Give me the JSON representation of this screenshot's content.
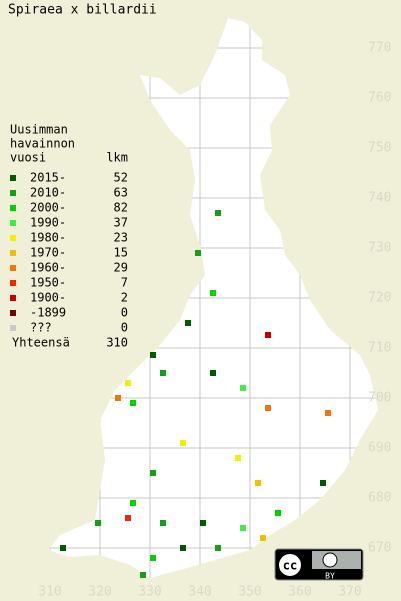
{
  "title": "Spiraea x billardii",
  "legend": {
    "heading": [
      "Uusimman",
      "havainnon",
      "vuosi"
    ],
    "count_heading": "lkm",
    "rows": [
      {
        "label": "2015-",
        "count": 52,
        "color": "#005a00"
      },
      {
        "label": "2010-",
        "count": 63,
        "color": "#14a014"
      },
      {
        "label": "2000-",
        "count": 82,
        "color": "#00d200"
      },
      {
        "label": "1990-",
        "count": 37,
        "color": "#3cf03c"
      },
      {
        "label": "1980-",
        "count": 23,
        "color": "#f0f000"
      },
      {
        "label": "1970-",
        "count": 15,
        "color": "#f0c000"
      },
      {
        "label": "1960-",
        "count": 29,
        "color": "#f07800"
      },
      {
        "label": "1950-",
        "count": 7,
        "color": "#f02800"
      },
      {
        "label": "1900-",
        "count": 2,
        "color": "#c80000"
      },
      {
        "label": "-1899",
        "count": 0,
        "color": "#780000"
      },
      {
        "label": "???",
        "count": 0,
        "color": "#c8c8c8"
      }
    ],
    "total_label": "Yhteensä",
    "total": 310
  },
  "axes": {
    "northing": [
      770,
      760,
      750,
      740,
      730,
      720,
      710,
      700,
      690,
      680,
      670
    ],
    "easting": [
      310,
      320,
      330,
      340,
      350,
      360,
      370
    ]
  },
  "license": {
    "logo": "cc",
    "badge": "BY"
  }
}
